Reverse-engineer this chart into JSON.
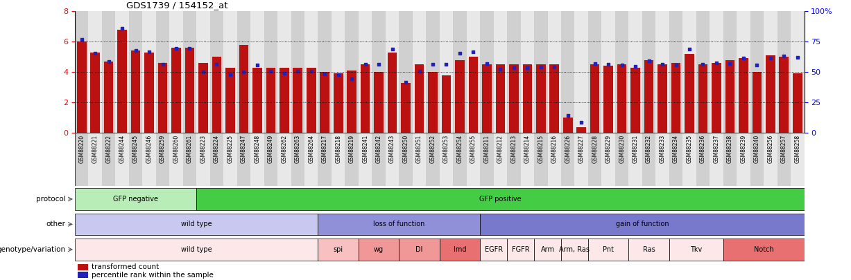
{
  "title": "GDS1739 / 154152_at",
  "samples": [
    "GSM88220",
    "GSM88221",
    "GSM88222",
    "GSM88244",
    "GSM88245",
    "GSM88246",
    "GSM88259",
    "GSM88260",
    "GSM88261",
    "GSM88223",
    "GSM88224",
    "GSM88225",
    "GSM88247",
    "GSM88248",
    "GSM88249",
    "GSM88262",
    "GSM88263",
    "GSM88264",
    "GSM88217",
    "GSM88218",
    "GSM88219",
    "GSM88241",
    "GSM88242",
    "GSM88243",
    "GSM88250",
    "GSM88251",
    "GSM88252",
    "GSM88253",
    "GSM88254",
    "GSM88255",
    "GSM88211",
    "GSM88212",
    "GSM88213",
    "GSM88214",
    "GSM88215",
    "GSM88216",
    "GSM88226",
    "GSM88227",
    "GSM88228",
    "GSM88229",
    "GSM88230",
    "GSM88231",
    "GSM88232",
    "GSM88233",
    "GSM88234",
    "GSM88235",
    "GSM88236",
    "GSM88237",
    "GSM88238",
    "GSM88239",
    "GSM88240",
    "GSM88256",
    "GSM88257",
    "GSM88258"
  ],
  "bar_heights": [
    6.0,
    5.3,
    4.7,
    6.8,
    5.4,
    5.3,
    4.6,
    5.6,
    5.6,
    4.6,
    5.0,
    4.3,
    5.8,
    4.3,
    4.3,
    4.3,
    4.3,
    4.3,
    4.0,
    3.9,
    4.1,
    4.5,
    4.0,
    5.3,
    3.3,
    4.5,
    4.0,
    3.8,
    4.8,
    5.0,
    4.5,
    4.5,
    4.5,
    4.5,
    4.5,
    4.5,
    1.0,
    0.4,
    4.5,
    4.4,
    4.5,
    4.3,
    4.8,
    4.5,
    4.6,
    5.2,
    4.5,
    4.6,
    4.8,
    4.9,
    4.0,
    5.1,
    5.0,
    3.9
  ],
  "dot_heights": [
    6.15,
    5.25,
    4.68,
    6.88,
    5.43,
    5.33,
    4.53,
    5.55,
    5.55,
    4.02,
    4.52,
    3.82,
    4.02,
    4.45,
    4.05,
    3.9,
    4.05,
    4.05,
    3.88,
    3.82,
    3.55,
    4.52,
    4.52,
    5.52,
    3.32,
    4.05,
    4.52,
    4.52,
    5.22,
    5.32,
    4.58,
    4.18,
    4.28,
    4.28,
    4.35,
    4.32,
    1.15,
    0.7,
    4.55,
    4.52,
    4.45,
    4.38,
    4.72,
    4.52,
    4.48,
    5.52,
    4.52,
    4.62,
    4.58,
    4.92,
    4.48,
    4.92,
    5.05,
    4.95
  ],
  "protocol_groups": [
    {
      "label": "GFP negative",
      "start": 0,
      "end": 9,
      "color": "#b8edb8"
    },
    {
      "label": "GFP positive",
      "start": 9,
      "end": 54,
      "color": "#44cc44"
    }
  ],
  "other_groups": [
    {
      "label": "wild type",
      "start": 0,
      "end": 18,
      "color": "#c8c8f0"
    },
    {
      "label": "loss of function",
      "start": 18,
      "end": 30,
      "color": "#9090d8"
    },
    {
      "label": "gain of function",
      "start": 30,
      "end": 54,
      "color": "#7878cc"
    }
  ],
  "genotype_groups": [
    {
      "label": "wild type",
      "start": 0,
      "end": 18,
      "color": "#fce8e8"
    },
    {
      "label": "spi",
      "start": 18,
      "end": 21,
      "color": "#f8c0c0"
    },
    {
      "label": "wg",
      "start": 21,
      "end": 24,
      "color": "#f09898"
    },
    {
      "label": "Dl",
      "start": 24,
      "end": 27,
      "color": "#f09898"
    },
    {
      "label": "Imd",
      "start": 27,
      "end": 30,
      "color": "#e87070"
    },
    {
      "label": "EGFR",
      "start": 30,
      "end": 32,
      "color": "#fce8e8"
    },
    {
      "label": "FGFR",
      "start": 32,
      "end": 34,
      "color": "#fce8e8"
    },
    {
      "label": "Arm",
      "start": 34,
      "end": 36,
      "color": "#fce8e8"
    },
    {
      "label": "Arm, Ras",
      "start": 36,
      "end": 38,
      "color": "#fce8e8"
    },
    {
      "label": "Pnt",
      "start": 38,
      "end": 41,
      "color": "#fce8e8"
    },
    {
      "label": "Ras",
      "start": 41,
      "end": 44,
      "color": "#fce8e8"
    },
    {
      "label": "Tkv",
      "start": 44,
      "end": 48,
      "color": "#fce8e8"
    },
    {
      "label": "Notch",
      "start": 48,
      "end": 54,
      "color": "#e87070"
    }
  ],
  "ylim": [
    0,
    8
  ],
  "yticks_left": [
    0,
    2,
    4,
    6,
    8
  ],
  "yticks_right": [
    0,
    25,
    50,
    75,
    100
  ],
  "right_labels": [
    "0",
    "25",
    "50",
    "75",
    "100%"
  ],
  "bar_color": "#bb1111",
  "dot_color": "#2222bb",
  "hlines": [
    2,
    4,
    6
  ],
  "legend_items": [
    {
      "color": "#bb1111",
      "label": "transformed count"
    },
    {
      "color": "#2222bb",
      "label": "percentile rank within the sample"
    }
  ],
  "tick_bg_even": "#d0d0d0",
  "tick_bg_odd": "#e8e8e8"
}
